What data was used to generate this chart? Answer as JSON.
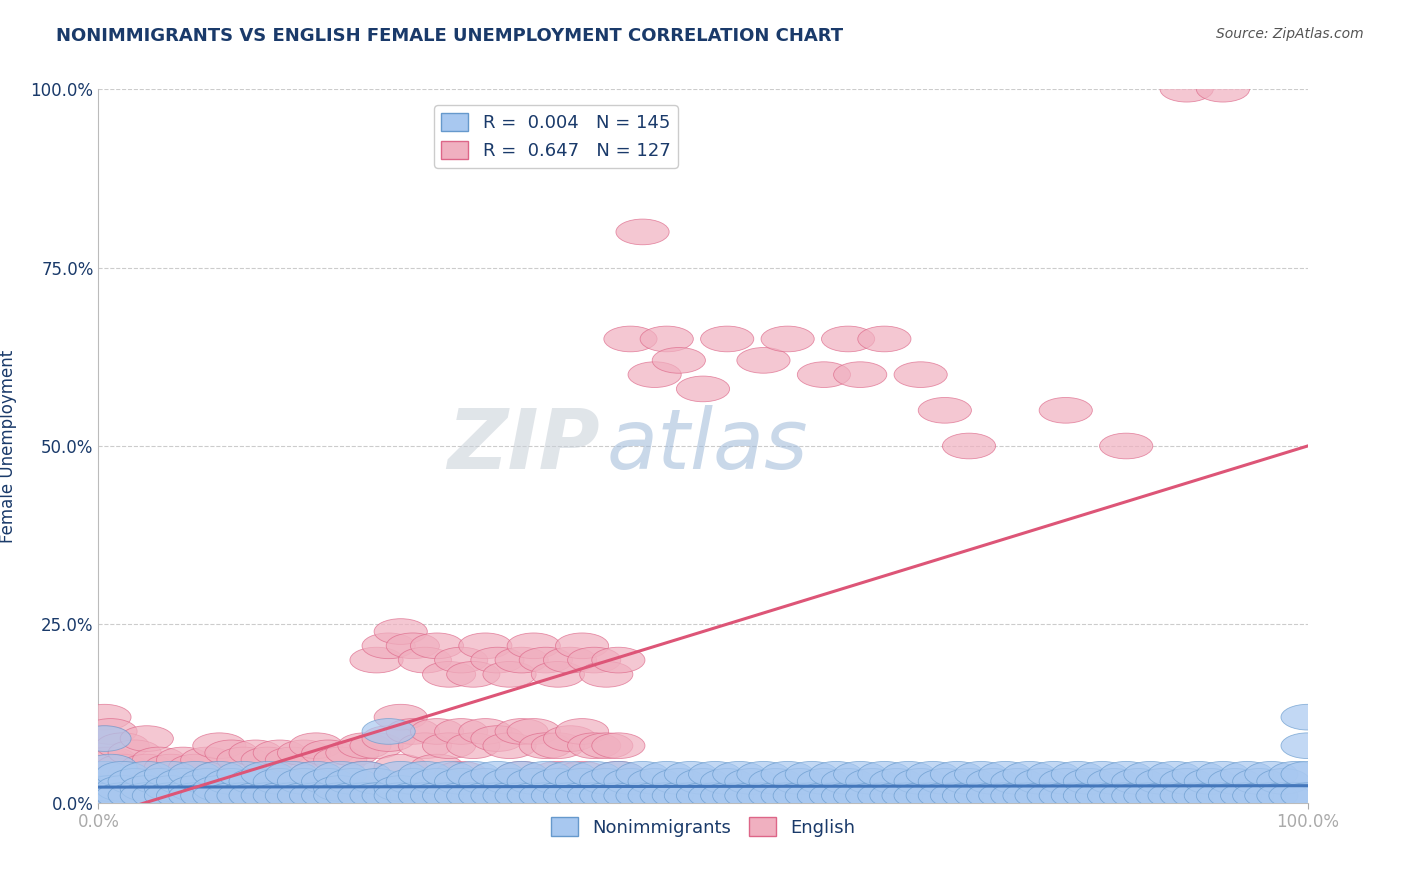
{
  "title": "NONIMMIGRANTS VS ENGLISH FEMALE UNEMPLOYMENT CORRELATION CHART",
  "source": "Source: ZipAtlas.com",
  "ylabel": "Female Unemployment",
  "x_tick_labels": [
    "0.0%",
    "100.0%"
  ],
  "y_tick_labels": [
    "0.0%",
    "25.0%",
    "50.0%",
    "75.0%",
    "100.0%"
  ],
  "y_tick_values": [
    0.0,
    0.25,
    0.5,
    0.75,
    1.0
  ],
  "series_nonimmigrants": {
    "color": "#a8c8f0",
    "edge_color": "#6699cc",
    "line_color": "#4477bb",
    "slope": 0.002,
    "intercept": 0.022,
    "points": [
      [
        0.005,
        0.09
      ],
      [
        0.005,
        0.04
      ],
      [
        0.005,
        0.02
      ],
      [
        0.005,
        0.01
      ],
      [
        0.01,
        0.05
      ],
      [
        0.01,
        0.02
      ],
      [
        0.01,
        0.01
      ],
      [
        0.02,
        0.04
      ],
      [
        0.02,
        0.02
      ],
      [
        0.02,
        0.01
      ],
      [
        0.03,
        0.03
      ],
      [
        0.03,
        0.01
      ],
      [
        0.04,
        0.04
      ],
      [
        0.04,
        0.02
      ],
      [
        0.04,
        0.01
      ],
      [
        0.05,
        0.03
      ],
      [
        0.05,
        0.01
      ],
      [
        0.06,
        0.04
      ],
      [
        0.06,
        0.02
      ],
      [
        0.06,
        0.01
      ],
      [
        0.07,
        0.03
      ],
      [
        0.07,
        0.01
      ],
      [
        0.08,
        0.04
      ],
      [
        0.08,
        0.02
      ],
      [
        0.08,
        0.01
      ],
      [
        0.09,
        0.03
      ],
      [
        0.09,
        0.01
      ],
      [
        0.1,
        0.04
      ],
      [
        0.1,
        0.02
      ],
      [
        0.1,
        0.01
      ],
      [
        0.11,
        0.03
      ],
      [
        0.11,
        0.01
      ],
      [
        0.12,
        0.04
      ],
      [
        0.12,
        0.01
      ],
      [
        0.13,
        0.03
      ],
      [
        0.13,
        0.01
      ],
      [
        0.14,
        0.04
      ],
      [
        0.14,
        0.01
      ],
      [
        0.15,
        0.03
      ],
      [
        0.15,
        0.01
      ],
      [
        0.16,
        0.04
      ],
      [
        0.16,
        0.01
      ],
      [
        0.17,
        0.03
      ],
      [
        0.17,
        0.01
      ],
      [
        0.18,
        0.04
      ],
      [
        0.18,
        0.01
      ],
      [
        0.19,
        0.03
      ],
      [
        0.19,
        0.01
      ],
      [
        0.2,
        0.04
      ],
      [
        0.2,
        0.02
      ],
      [
        0.2,
        0.01
      ],
      [
        0.21,
        0.03
      ],
      [
        0.21,
        0.01
      ],
      [
        0.22,
        0.04
      ],
      [
        0.22,
        0.01
      ],
      [
        0.23,
        0.03
      ],
      [
        0.23,
        0.01
      ],
      [
        0.24,
        0.1
      ],
      [
        0.24,
        0.01
      ],
      [
        0.25,
        0.04
      ],
      [
        0.25,
        0.02
      ],
      [
        0.25,
        0.01
      ],
      [
        0.26,
        0.03
      ],
      [
        0.26,
        0.01
      ],
      [
        0.27,
        0.04
      ],
      [
        0.27,
        0.01
      ],
      [
        0.28,
        0.03
      ],
      [
        0.28,
        0.01
      ],
      [
        0.29,
        0.04
      ],
      [
        0.29,
        0.01
      ],
      [
        0.3,
        0.03
      ],
      [
        0.3,
        0.01
      ],
      [
        0.31,
        0.04
      ],
      [
        0.31,
        0.01
      ],
      [
        0.32,
        0.03
      ],
      [
        0.32,
        0.01
      ],
      [
        0.33,
        0.04
      ],
      [
        0.33,
        0.01
      ],
      [
        0.34,
        0.03
      ],
      [
        0.34,
        0.01
      ],
      [
        0.35,
        0.04
      ],
      [
        0.35,
        0.01
      ],
      [
        0.36,
        0.03
      ],
      [
        0.36,
        0.01
      ],
      [
        0.37,
        0.04
      ],
      [
        0.37,
        0.01
      ],
      [
        0.38,
        0.03
      ],
      [
        0.38,
        0.01
      ],
      [
        0.39,
        0.04
      ],
      [
        0.39,
        0.01
      ],
      [
        0.4,
        0.03
      ],
      [
        0.4,
        0.01
      ],
      [
        0.41,
        0.04
      ],
      [
        0.41,
        0.01
      ],
      [
        0.42,
        0.03
      ],
      [
        0.42,
        0.01
      ],
      [
        0.43,
        0.04
      ],
      [
        0.43,
        0.01
      ],
      [
        0.44,
        0.03
      ],
      [
        0.44,
        0.01
      ],
      [
        0.45,
        0.04
      ],
      [
        0.45,
        0.01
      ],
      [
        0.46,
        0.03
      ],
      [
        0.46,
        0.01
      ],
      [
        0.47,
        0.04
      ],
      [
        0.47,
        0.01
      ],
      [
        0.48,
        0.03
      ],
      [
        0.48,
        0.01
      ],
      [
        0.49,
        0.04
      ],
      [
        0.49,
        0.01
      ],
      [
        0.5,
        0.03
      ],
      [
        0.5,
        0.01
      ],
      [
        0.51,
        0.04
      ],
      [
        0.51,
        0.01
      ],
      [
        0.52,
        0.03
      ],
      [
        0.52,
        0.01
      ],
      [
        0.53,
        0.04
      ],
      [
        0.53,
        0.01
      ],
      [
        0.54,
        0.03
      ],
      [
        0.54,
        0.01
      ],
      [
        0.55,
        0.04
      ],
      [
        0.55,
        0.01
      ],
      [
        0.56,
        0.03
      ],
      [
        0.56,
        0.01
      ],
      [
        0.57,
        0.04
      ],
      [
        0.57,
        0.01
      ],
      [
        0.58,
        0.03
      ],
      [
        0.58,
        0.01
      ],
      [
        0.59,
        0.04
      ],
      [
        0.59,
        0.01
      ],
      [
        0.6,
        0.03
      ],
      [
        0.6,
        0.01
      ],
      [
        0.61,
        0.04
      ],
      [
        0.61,
        0.01
      ],
      [
        0.62,
        0.03
      ],
      [
        0.62,
        0.01
      ],
      [
        0.63,
        0.04
      ],
      [
        0.63,
        0.01
      ],
      [
        0.64,
        0.03
      ],
      [
        0.64,
        0.01
      ],
      [
        0.65,
        0.04
      ],
      [
        0.65,
        0.01
      ],
      [
        0.66,
        0.03
      ],
      [
        0.66,
        0.01
      ],
      [
        0.67,
        0.04
      ],
      [
        0.67,
        0.01
      ],
      [
        0.68,
        0.03
      ],
      [
        0.68,
        0.01
      ],
      [
        0.69,
        0.04
      ],
      [
        0.69,
        0.01
      ],
      [
        0.7,
        0.03
      ],
      [
        0.7,
        0.01
      ],
      [
        0.71,
        0.04
      ],
      [
        0.71,
        0.01
      ],
      [
        0.72,
        0.03
      ],
      [
        0.72,
        0.01
      ],
      [
        0.73,
        0.04
      ],
      [
        0.73,
        0.01
      ],
      [
        0.74,
        0.03
      ],
      [
        0.74,
        0.01
      ],
      [
        0.75,
        0.04
      ],
      [
        0.75,
        0.01
      ],
      [
        0.76,
        0.03
      ],
      [
        0.76,
        0.01
      ],
      [
        0.77,
        0.04
      ],
      [
        0.77,
        0.01
      ],
      [
        0.78,
        0.03
      ],
      [
        0.78,
        0.01
      ],
      [
        0.79,
        0.04
      ],
      [
        0.79,
        0.01
      ],
      [
        0.8,
        0.03
      ],
      [
        0.8,
        0.01
      ],
      [
        0.81,
        0.04
      ],
      [
        0.81,
        0.01
      ],
      [
        0.82,
        0.03
      ],
      [
        0.82,
        0.01
      ],
      [
        0.83,
        0.04
      ],
      [
        0.83,
        0.01
      ],
      [
        0.84,
        0.03
      ],
      [
        0.84,
        0.01
      ],
      [
        0.85,
        0.04
      ],
      [
        0.85,
        0.01
      ],
      [
        0.86,
        0.03
      ],
      [
        0.86,
        0.01
      ],
      [
        0.87,
        0.04
      ],
      [
        0.87,
        0.01
      ],
      [
        0.88,
        0.03
      ],
      [
        0.88,
        0.01
      ],
      [
        0.89,
        0.04
      ],
      [
        0.89,
        0.01
      ],
      [
        0.9,
        0.03
      ],
      [
        0.9,
        0.01
      ],
      [
        0.91,
        0.04
      ],
      [
        0.91,
        0.01
      ],
      [
        0.92,
        0.03
      ],
      [
        0.92,
        0.01
      ],
      [
        0.93,
        0.04
      ],
      [
        0.93,
        0.01
      ],
      [
        0.94,
        0.03
      ],
      [
        0.94,
        0.01
      ],
      [
        0.95,
        0.04
      ],
      [
        0.95,
        0.01
      ],
      [
        0.96,
        0.03
      ],
      [
        0.96,
        0.01
      ],
      [
        0.97,
        0.04
      ],
      [
        0.97,
        0.01
      ],
      [
        0.98,
        0.03
      ],
      [
        0.98,
        0.01
      ],
      [
        0.99,
        0.04
      ],
      [
        0.99,
        0.01
      ],
      [
        1.0,
        0.12
      ],
      [
        1.0,
        0.08
      ],
      [
        1.0,
        0.04
      ],
      [
        1.0,
        0.01
      ]
    ]
  },
  "series_english": {
    "color": "#f0b0c0",
    "edge_color": "#dd6688",
    "line_color": "#dd5577",
    "slope": 0.52,
    "intercept": -0.02,
    "points": [
      [
        0.005,
        0.12
      ],
      [
        0.005,
        0.09
      ],
      [
        0.005,
        0.06
      ],
      [
        0.005,
        0.04
      ],
      [
        0.005,
        0.02
      ],
      [
        0.005,
        0.01
      ],
      [
        0.01,
        0.1
      ],
      [
        0.01,
        0.06
      ],
      [
        0.01,
        0.03
      ],
      [
        0.01,
        0.01
      ],
      [
        0.02,
        0.08
      ],
      [
        0.02,
        0.05
      ],
      [
        0.02,
        0.02
      ],
      [
        0.02,
        0.01
      ],
      [
        0.03,
        0.07
      ],
      [
        0.03,
        0.04
      ],
      [
        0.03,
        0.02
      ],
      [
        0.03,
        0.01
      ],
      [
        0.04,
        0.09
      ],
      [
        0.04,
        0.05
      ],
      [
        0.04,
        0.02
      ],
      [
        0.04,
        0.01
      ],
      [
        0.05,
        0.06
      ],
      [
        0.05,
        0.03
      ],
      [
        0.05,
        0.01
      ],
      [
        0.06,
        0.05
      ],
      [
        0.06,
        0.02
      ],
      [
        0.06,
        0.01
      ],
      [
        0.07,
        0.06
      ],
      [
        0.07,
        0.03
      ],
      [
        0.07,
        0.01
      ],
      [
        0.08,
        0.05
      ],
      [
        0.08,
        0.02
      ],
      [
        0.08,
        0.01
      ],
      [
        0.09,
        0.06
      ],
      [
        0.09,
        0.03
      ],
      [
        0.09,
        0.01
      ],
      [
        0.1,
        0.08
      ],
      [
        0.1,
        0.04
      ],
      [
        0.1,
        0.02
      ],
      [
        0.1,
        0.01
      ],
      [
        0.11,
        0.07
      ],
      [
        0.11,
        0.03
      ],
      [
        0.11,
        0.01
      ],
      [
        0.12,
        0.06
      ],
      [
        0.12,
        0.02
      ],
      [
        0.12,
        0.01
      ],
      [
        0.13,
        0.07
      ],
      [
        0.13,
        0.03
      ],
      [
        0.13,
        0.01
      ],
      [
        0.14,
        0.06
      ],
      [
        0.14,
        0.02
      ],
      [
        0.14,
        0.01
      ],
      [
        0.15,
        0.07
      ],
      [
        0.15,
        0.03
      ],
      [
        0.15,
        0.01
      ],
      [
        0.16,
        0.06
      ],
      [
        0.16,
        0.02
      ],
      [
        0.17,
        0.07
      ],
      [
        0.17,
        0.03
      ],
      [
        0.18,
        0.08
      ],
      [
        0.18,
        0.04
      ],
      [
        0.19,
        0.07
      ],
      [
        0.19,
        0.03
      ],
      [
        0.2,
        0.06
      ],
      [
        0.2,
        0.02
      ],
      [
        0.21,
        0.07
      ],
      [
        0.21,
        0.03
      ],
      [
        0.22,
        0.08
      ],
      [
        0.22,
        0.04
      ],
      [
        0.23,
        0.2
      ],
      [
        0.23,
        0.08
      ],
      [
        0.24,
        0.22
      ],
      [
        0.24,
        0.09
      ],
      [
        0.25,
        0.24
      ],
      [
        0.25,
        0.12
      ],
      [
        0.25,
        0.05
      ],
      [
        0.26,
        0.22
      ],
      [
        0.26,
        0.1
      ],
      [
        0.27,
        0.2
      ],
      [
        0.27,
        0.08
      ],
      [
        0.28,
        0.22
      ],
      [
        0.28,
        0.1
      ],
      [
        0.28,
        0.05
      ],
      [
        0.29,
        0.18
      ],
      [
        0.29,
        0.08
      ],
      [
        0.3,
        0.2
      ],
      [
        0.3,
        0.1
      ],
      [
        0.3,
        0.04
      ],
      [
        0.31,
        0.18
      ],
      [
        0.31,
        0.08
      ],
      [
        0.32,
        0.22
      ],
      [
        0.32,
        0.1
      ],
      [
        0.33,
        0.2
      ],
      [
        0.33,
        0.09
      ],
      [
        0.34,
        0.18
      ],
      [
        0.34,
        0.08
      ],
      [
        0.35,
        0.2
      ],
      [
        0.35,
        0.1
      ],
      [
        0.35,
        0.04
      ],
      [
        0.36,
        0.22
      ],
      [
        0.36,
        0.1
      ],
      [
        0.37,
        0.2
      ],
      [
        0.37,
        0.08
      ],
      [
        0.38,
        0.18
      ],
      [
        0.38,
        0.08
      ],
      [
        0.38,
        0.04
      ],
      [
        0.39,
        0.2
      ],
      [
        0.39,
        0.09
      ],
      [
        0.4,
        0.22
      ],
      [
        0.4,
        0.1
      ],
      [
        0.4,
        0.04
      ],
      [
        0.41,
        0.2
      ],
      [
        0.41,
        0.08
      ],
      [
        0.42,
        0.18
      ],
      [
        0.42,
        0.08
      ],
      [
        0.43,
        0.2
      ],
      [
        0.43,
        0.08
      ],
      [
        0.43,
        0.04
      ],
      [
        0.44,
        0.65
      ],
      [
        0.45,
        0.8
      ],
      [
        0.46,
        0.6
      ],
      [
        0.47,
        0.65
      ],
      [
        0.48,
        0.62
      ],
      [
        0.5,
        0.58
      ],
      [
        0.52,
        0.65
      ],
      [
        0.55,
        0.62
      ],
      [
        0.57,
        0.65
      ],
      [
        0.6,
        0.6
      ],
      [
        0.62,
        0.65
      ],
      [
        0.63,
        0.6
      ],
      [
        0.65,
        0.65
      ],
      [
        0.68,
        0.6
      ],
      [
        0.7,
        0.55
      ],
      [
        0.72,
        0.5
      ],
      [
        0.8,
        0.55
      ],
      [
        0.85,
        0.5
      ],
      [
        0.9,
        1.0
      ],
      [
        0.93,
        1.0
      ]
    ]
  },
  "watermark_part1": "ZIP",
  "watermark_part2": "atlas",
  "title_color": "#1a3a6a",
  "axis_label_color": "#1a3a6a",
  "tick_color": "#1a3a6a",
  "source_color": "#555555",
  "grid_color": "#cccccc",
  "background_color": "#ffffff",
  "xlim": [
    0.0,
    1.0
  ],
  "ylim": [
    0.0,
    1.0
  ]
}
